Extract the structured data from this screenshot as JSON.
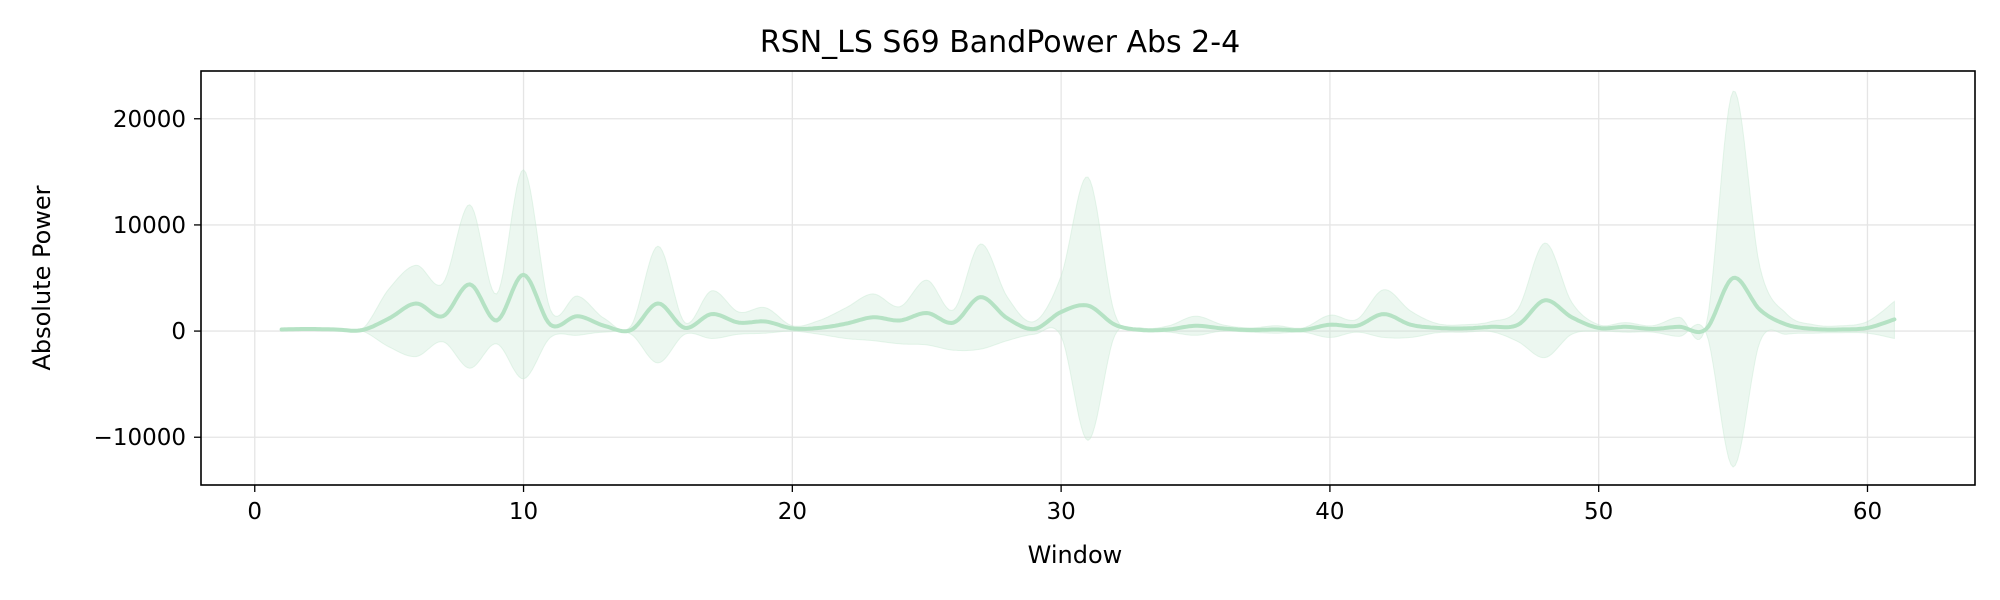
{
  "chart_data": {
    "type": "line",
    "title": "RSN_LS S69 BandPower Abs 2-4",
    "xlabel": "Window",
    "ylabel": "Absolute Power",
    "xlim": [
      -2,
      64
    ],
    "ylim": [
      -14500,
      24500
    ],
    "xticks": [
      0,
      10,
      20,
      30,
      40,
      50,
      60
    ],
    "yticks": [
      -10000,
      0,
      10000,
      20000
    ],
    "ytick_labels": [
      "−10000",
      "0",
      "10000",
      "20000"
    ],
    "grid": true,
    "legend": "none",
    "colors": {
      "line": "#b5e2c4",
      "band": "#c8e9d3",
      "grid": "#e5e5e5",
      "axes": "#000000"
    },
    "series": [
      {
        "x": [
          1,
          2,
          3,
          4,
          5,
          6,
          7,
          8,
          9,
          10,
          11,
          12,
          13,
          14,
          15,
          16,
          17,
          18,
          19,
          20,
          21,
          22,
          23,
          24,
          25,
          26,
          27,
          28,
          29,
          30,
          31,
          32,
          33,
          34,
          35,
          36,
          37,
          38,
          39,
          40,
          41,
          42,
          43,
          44,
          45,
          46,
          47,
          48,
          49,
          50,
          51,
          52,
          53,
          54,
          55,
          56,
          57,
          58,
          59,
          60,
          61
        ],
        "mean": [
          150,
          200,
          150,
          100,
          1200,
          2600,
          1400,
          4400,
          1000,
          5300,
          600,
          1400,
          500,
          100,
          2600,
          300,
          1600,
          800,
          900,
          250,
          300,
          700,
          1300,
          1000,
          1700,
          800,
          3200,
          1200,
          200,
          1800,
          2400,
          600,
          100,
          150,
          500,
          250,
          100,
          150,
          100,
          600,
          500,
          1600,
          600,
          300,
          250,
          400,
          600,
          2900,
          1300,
          300,
          400,
          200,
          400,
          200,
          5000,
          2000,
          600,
          200,
          150,
          300,
          1100
        ],
        "upper": [
          300,
          300,
          200,
          200,
          4000,
          6200,
          4500,
          11900,
          3500,
          15200,
          2000,
          3300,
          1200,
          500,
          8000,
          800,
          3800,
          1800,
          2200,
          500,
          1000,
          2200,
          3500,
          2300,
          4800,
          2000,
          8200,
          3200,
          900,
          5200,
          14500,
          1600,
          300,
          500,
          1400,
          600,
          300,
          500,
          300,
          1500,
          1100,
          3900,
          1900,
          700,
          600,
          900,
          2100,
          8300,
          2700,
          600,
          800,
          500,
          1300,
          600,
          22600,
          6000,
          1600,
          600,
          500,
          900,
          2800
        ],
        "lower": [
          0,
          100,
          100,
          0,
          -1500,
          -2400,
          -1000,
          -3500,
          -1200,
          -4500,
          -600,
          -400,
          -100,
          -300,
          -3000,
          -300,
          -700,
          -300,
          -200,
          0,
          -300,
          -700,
          -900,
          -1200,
          -1300,
          -1800,
          -1700,
          -900,
          -300,
          -500,
          -10300,
          -400,
          -50,
          -100,
          -400,
          0,
          -100,
          -200,
          -100,
          -600,
          -100,
          -600,
          -600,
          -150,
          -100,
          -50,
          -1000,
          -2500,
          -300,
          0,
          -100,
          -100,
          -500,
          -200,
          -12800,
          -1000,
          -300,
          -200,
          -150,
          -200,
          -700
        ]
      }
    ]
  }
}
